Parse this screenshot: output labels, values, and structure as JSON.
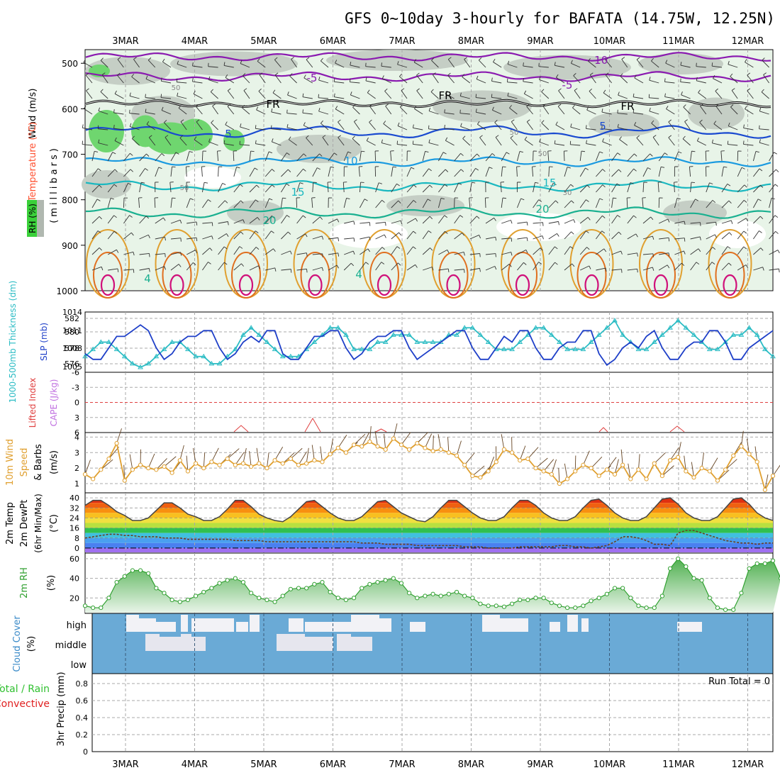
{
  "title": "GFS 0~10day 3-hourly for BAFATA (14.75W, 12.25N)",
  "dates": [
    "3MAR",
    "4MAR",
    "5MAR",
    "6MAR",
    "7MAR",
    "8MAR",
    "9MAR",
    "10MAR",
    "11MAR",
    "12MAR"
  ],
  "colors": {
    "frame": "#000000",
    "grid": "#a9a9a9",
    "rh_green": "#6fd66f",
    "rh_grey": "#c8d2c8",
    "slp": "#1e3fc8",
    "thickness": "#2bbcc4",
    "lifted": "#e04040",
    "cape": "#c070e0",
    "wind10": "#e0a030",
    "rh2m": "#30a030",
    "cloud_bg": "#6aaad6",
    "cloud_fill": "#f2f2f6",
    "precip_total": "#30c030",
    "precip_conv": "#e02020"
  },
  "panels": {
    "upper": {
      "label_wind": "Wind (m/s)",
      "label_temp": "Temperature (°C)",
      "label_mb": "(millibars)",
      "label_rh": "RH (%)",
      "y_ticks": [
        "500",
        "600",
        "700",
        "800",
        "900",
        "1000"
      ],
      "contour_labels": [
        "-10",
        "-5",
        "-5",
        "FR",
        "FR",
        "FR",
        "5",
        "5",
        "10",
        "15",
        "15",
        "20",
        "20",
        "50",
        "50",
        "50",
        "50",
        "30",
        "4",
        "4"
      ]
    },
    "slp": {
      "label_thick": "1000-500mb Thickness (dm)",
      "label_slp": "SLP (mb)",
      "left_ticks": [
        "582",
        "580",
        "578",
        "576"
      ],
      "right_ticks": [
        "1014",
        "1011",
        "1008",
        "1005"
      ]
    },
    "li": {
      "label_li": "Lifted Index",
      "label_cape": "CAPE (J/kg)",
      "ticks": [
        "-6",
        "-3",
        "0",
        "3",
        "6"
      ]
    },
    "wind10": {
      "label_a": "10m Wind",
      "label_b": "Speed",
      "label_c": "& Barbs",
      "label_d": "(m/s)",
      "ticks": [
        "4",
        "3",
        "2",
        "1"
      ]
    },
    "temp2m": {
      "label_a": "2m Temp",
      "label_b": "2m DewPt",
      "label_c": "(6hr Min/Max)",
      "label_d": "(°C)",
      "ticks": [
        "40",
        "32",
        "24",
        "16",
        "8",
        "0"
      ]
    },
    "rh2m": {
      "label_a": "2m RH",
      "label_b": "(%)",
      "ticks": [
        "60",
        "40",
        "20"
      ]
    },
    "cloud": {
      "label_a": "Cloud Cover",
      "label_b": "(%)",
      "levels": [
        "high",
        "middle",
        "low"
      ]
    },
    "precip": {
      "label_a": "Total / Rain",
      "label_b": "Convective",
      "label_c": "3hr Precip (mm)",
      "run_total": "Run Total = 0",
      "ticks": [
        "0.8",
        "0.6",
        "0.4",
        "0.2",
        "0"
      ]
    }
  },
  "chart_data": [
    {
      "type": "line",
      "name": "SLP",
      "ylim": [
        1004,
        1014
      ],
      "x": "3-hourly steps from 2 Mar 12Z through 12 Mar 06Z",
      "values": [
        1007,
        1006,
        1006,
        1008,
        1010,
        1010,
        1011,
        1012,
        1011,
        1008,
        1006,
        1007,
        1009,
        1010,
        1010,
        1011,
        1011,
        1008,
        1006,
        1007,
        1009,
        1010,
        1009,
        1011,
        1011,
        1007,
        1006,
        1006,
        1008,
        1010,
        1010,
        1011,
        1011,
        1008,
        1006,
        1007,
        1009,
        1010,
        1010,
        1011,
        1011,
        1008,
        1006,
        1007,
        1008,
        1009,
        1010,
        1011,
        1011,
        1008,
        1006,
        1006,
        1008,
        1010,
        1009,
        1011,
        1011,
        1008,
        1006,
        1006,
        1008,
        1009,
        1009,
        1011,
        1011,
        1007,
        1005,
        1006,
        1008,
        1009,
        1008,
        1010,
        1011,
        1008,
        1006,
        1006,
        1008,
        1009,
        1009,
        1011,
        1011,
        1009,
        1006,
        1006,
        1008,
        1009,
        1010,
        1011
      ]
    },
    {
      "type": "line",
      "name": "Thickness",
      "ylim": [
        575,
        583
      ],
      "values": [
        577,
        578,
        579,
        579,
        578,
        577,
        576,
        575.5,
        576,
        577,
        578,
        579,
        579,
        578,
        577,
        577,
        576,
        576,
        577,
        578,
        580,
        581,
        580,
        579,
        578,
        577,
        577,
        577,
        578,
        579,
        580,
        581,
        581,
        580,
        578,
        578,
        578,
        579,
        579,
        580,
        580,
        580,
        579,
        579,
        579,
        579,
        580,
        580,
        581,
        581,
        580,
        579,
        578,
        578,
        578,
        579,
        580,
        581,
        581,
        580,
        579,
        578,
        578,
        578,
        579,
        580,
        581,
        582,
        580,
        579,
        578,
        578,
        579,
        580,
        581,
        582,
        581,
        580,
        579,
        578,
        578,
        579,
        580,
        580,
        581,
        580,
        578,
        577
      ]
    },
    {
      "type": "line",
      "name": "10m wind speed",
      "ylim": [
        0.5,
        4.2
      ],
      "values": [
        1.6,
        1.3,
        1.9,
        2.6,
        3.6,
        1.2,
        1.9,
        2.2,
        2.0,
        1.9,
        2.1,
        1.7,
        2.5,
        1.8,
        2.3,
        2.0,
        2.4,
        2.2,
        2.6,
        2.2,
        2.3,
        2.1,
        2.3,
        2.0,
        2.5,
        2.3,
        2.6,
        2.2,
        2.3,
        2.5,
        2.4,
        2.9,
        3.3,
        3.0,
        3.5,
        3.4,
        3.7,
        3.4,
        3.2,
        3.9,
        3.5,
        3.2,
        3.6,
        3.3,
        3.1,
        3.2,
        3.0,
        2.8,
        2.2,
        1.5,
        1.4,
        1.8,
        2.4,
        3.2,
        3.0,
        2.5,
        2.6,
        2.0,
        1.8,
        1.6,
        1.0,
        1.3,
        1.8,
        2.2,
        2.0,
        1.5,
        1.9,
        1.6,
        2.2,
        1.3,
        1.9,
        1.3,
        2.3,
        1.5,
        2.5,
        2.7,
        1.8,
        1.4,
        2.0,
        1.8,
        1.2,
        1.9,
        2.8,
        3.4,
        2.9,
        2.4,
        0.6,
        1.5
      ]
    },
    {
      "type": "area",
      "name": "2m Temp",
      "ylim": [
        -4,
        44
      ],
      "values": [
        34,
        38,
        38,
        34,
        29,
        26,
        22,
        22,
        24,
        30,
        36,
        36,
        32,
        27,
        25,
        22,
        22,
        25,
        31,
        38,
        38,
        33,
        27,
        24,
        22,
        21,
        25,
        31,
        37,
        38,
        33,
        28,
        24,
        22,
        22,
        25,
        31,
        37,
        38,
        33,
        28,
        25,
        22,
        21,
        25,
        32,
        38,
        38,
        33,
        28,
        24,
        22,
        22,
        25,
        32,
        38,
        38,
        34,
        28,
        24,
        22,
        22,
        25,
        32,
        38,
        39,
        34,
        28,
        24,
        22,
        22,
        25,
        32,
        39,
        40,
        35,
        28,
        24,
        22,
        22,
        25,
        32,
        39,
        40,
        35,
        28,
        24,
        22
      ]
    },
    {
      "type": "line",
      "name": "2m DewPt",
      "ylim": [
        -4,
        44
      ],
      "values": [
        8,
        9,
        10,
        11,
        11,
        10,
        10,
        9,
        9,
        9,
        8,
        8,
        8,
        7,
        7,
        7,
        7,
        7,
        7,
        6,
        6,
        6,
        6,
        5,
        5,
        5,
        5,
        5,
        5,
        5,
        5,
        5,
        5,
        5,
        5,
        4,
        4,
        4,
        3,
        3,
        3,
        3,
        2,
        2,
        2,
        2,
        2,
        2,
        1,
        1,
        1,
        0,
        0,
        0,
        0,
        1,
        1,
        1,
        1,
        1,
        2,
        2,
        1,
        1,
        0,
        1,
        2,
        5,
        9,
        9,
        8,
        6,
        3,
        3,
        2,
        12,
        14,
        14,
        12,
        10,
        8,
        6,
        5,
        4,
        4,
        3,
        4,
        4
      ]
    },
    {
      "type": "area",
      "name": "2m RH",
      "ylim": [
        5,
        65
      ],
      "values": [
        12,
        10,
        10,
        20,
        36,
        42,
        48,
        48,
        45,
        30,
        25,
        18,
        16,
        18,
        22,
        26,
        30,
        35,
        38,
        40,
        36,
        25,
        20,
        18,
        16,
        22,
        29,
        30,
        30,
        34,
        36,
        26,
        20,
        18,
        20,
        30,
        34,
        36,
        38,
        40,
        35,
        25,
        20,
        22,
        24,
        22,
        24,
        26,
        22,
        20,
        14,
        12,
        12,
        11,
        14,
        18,
        18,
        20,
        20,
        15,
        12,
        10,
        10,
        12,
        17,
        20,
        24,
        30,
        30,
        20,
        12,
        10,
        10,
        22,
        50,
        60,
        52,
        40,
        38,
        20,
        10,
        8,
        8,
        25,
        50,
        55,
        55,
        58,
        40
      ]
    }
  ]
}
